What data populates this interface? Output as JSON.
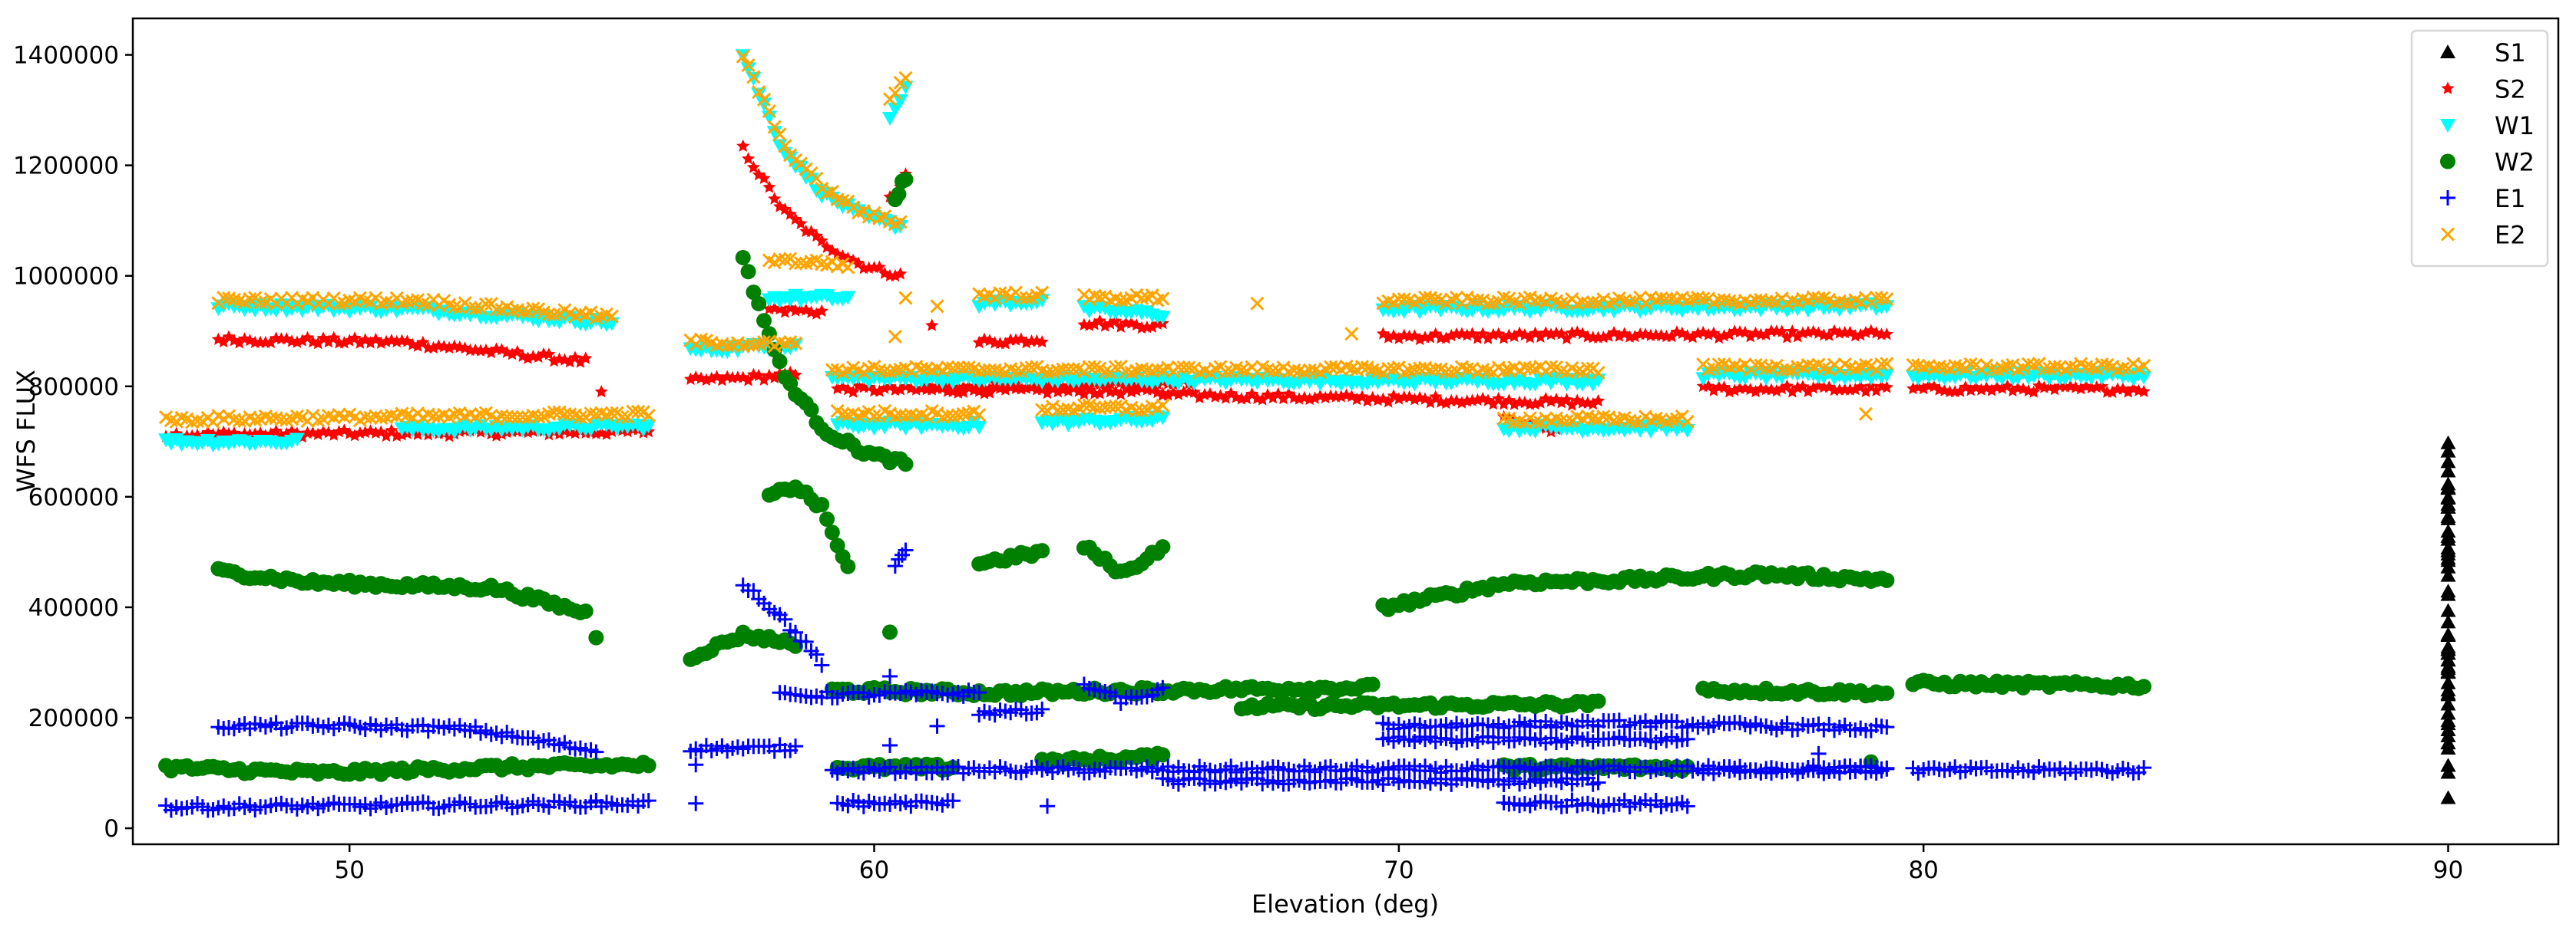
{
  "chart_data": {
    "type": "scatter",
    "title": "",
    "xlabel": "Elevation (deg)",
    "ylabel": "WFS FLUX",
    "xlim": [
      45.87,
      92.1
    ],
    "ylim": [
      -29000,
      1466000
    ],
    "xticks": [
      "50",
      "60",
      "70",
      "80",
      "90"
    ],
    "yticks": [
      "0",
      "200000",
      "400000",
      "600000",
      "800000",
      "1000000",
      "1200000",
      "1400000"
    ],
    "grid": false,
    "legend_position": "top-right",
    "series": [
      {
        "name": "S1",
        "color": "#000000",
        "marker": "triangle-up",
        "segments": [
          [
            90,
            90,
            [
              40000,
              700000
            ]
          ]
        ],
        "points": []
      },
      {
        "name": "S2",
        "color": "#ff0000",
        "marker": "star",
        "segments": [
          [
            46.5,
            55.7,
            [
              712000,
              718000
            ]
          ],
          [
            47.5,
            54.5,
            [
              885000,
              880000,
              845000
            ]
          ],
          [
            56.5,
            58.5,
            [
              810000,
              820000
            ]
          ],
          [
            57.5,
            60.5,
            [
              1230000,
              1120000,
              1060000,
              1020000,
              1000000
            ]
          ],
          [
            58,
            59,
            [
              940000,
              935000
            ]
          ],
          [
            59.3,
            65.5,
            [
              795000,
              790000
            ]
          ],
          [
            60.3,
            60.6,
            [
              1140000,
              1180000
            ]
          ],
          [
            62,
            63.2,
            [
              880000,
              885000
            ]
          ],
          [
            64,
            65.5,
            [
              915000,
              910000
            ]
          ],
          [
            61,
            66,
            [
              800000,
              805000
            ]
          ],
          [
            65.5,
            73.8,
            [
              785000,
              770000
            ]
          ],
          [
            69.7,
            79.3,
            [
              890000,
              895000
            ]
          ],
          [
            72,
            73,
            [
              740000,
              720000
            ]
          ],
          [
            75.8,
            79.3,
            [
              795000,
              795000
            ]
          ],
          [
            79.8,
            84.2,
            [
              795000,
              795000
            ]
          ]
        ],
        "points": [
          [
            54.8,
            790000
          ],
          [
            61.1,
            910000
          ]
        ]
      },
      {
        "name": "W1",
        "color": "#00ffff",
        "marker": "triangle-down",
        "segments": [
          [
            46.5,
            49,
            [
              700000,
              700000
            ]
          ],
          [
            47.5,
            55,
            [
              945000,
              940000,
              915000
            ]
          ],
          [
            51,
            55.7,
            [
              722000,
              728000
            ]
          ],
          [
            56.5,
            58.5,
            [
              865000,
              875000
            ]
          ],
          [
            57.5,
            60.5,
            [
              1400000,
              1230000,
              1150000,
              1110000,
              1090000
            ]
          ],
          [
            58,
            59.5,
            [
              960000,
              960000
            ]
          ],
          [
            59.3,
            62,
            [
              730000,
              730000
            ]
          ],
          [
            59.2,
            69.5,
            [
              815000,
              810000
            ]
          ],
          [
            60.3,
            60.6,
            [
              1280000,
              1340000
            ]
          ],
          [
            62,
            63.2,
            [
              950000,
              955000
            ]
          ],
          [
            64,
            65.5,
            [
              940000,
              930000
            ]
          ],
          [
            63.2,
            65.5,
            [
              735000,
              740000
            ]
          ],
          [
            69.7,
            79.3,
            [
              940000,
              945000
            ]
          ],
          [
            69.5,
            73.8,
            [
              810000,
              810000
            ]
          ],
          [
            72,
            75.5,
            [
              725000,
              725000
            ]
          ],
          [
            75.8,
            79.3,
            [
              820000,
              820000
            ]
          ],
          [
            79.8,
            84.2,
            [
              820000,
              820000
            ]
          ]
        ],
        "points": []
      },
      {
        "name": "W2",
        "color": "#008000",
        "marker": "circle",
        "segments": [
          [
            46.5,
            55.7,
            [
              110000,
              100000,
              110000,
              115000
            ]
          ],
          [
            47.5,
            54.5,
            [
              465000,
              445000,
              440000,
              435000,
              390000
            ]
          ],
          [
            56.5,
            58.5,
            [
              310000,
              350000,
              335000
            ]
          ],
          [
            57.5,
            60.6,
            [
              1030000,
              820000,
              720000,
              680000,
              660000
            ]
          ],
          [
            58,
            59.5,
            [
              600000,
              620000,
              580000,
              470000
            ]
          ],
          [
            59.2,
            65.5,
            [
              250000,
              245000,
              250000
            ]
          ],
          [
            60.4,
            60.6,
            [
              1140000,
              1180000
            ]
          ],
          [
            59.3,
            61.5,
            [
              110000,
              110000
            ]
          ],
          [
            62,
            63.2,
            [
              480000,
              500000
            ]
          ],
          [
            64,
            65.5,
            [
              510000,
              460000,
              510000
            ]
          ],
          [
            63.2,
            65.5,
            [
              120000,
              130000
            ]
          ],
          [
            65.5,
            69.5,
            [
              250000,
              255000
            ]
          ],
          [
            67,
            73.8,
            [
              220000,
              225000
            ]
          ],
          [
            69.7,
            79.3,
            [
              400000,
              445000,
              450000,
              460000,
              450000
            ]
          ],
          [
            72,
            75.5,
            [
              110000,
              110000
            ]
          ],
          [
            75.8,
            79.3,
            [
              250000,
              245000
            ]
          ],
          [
            79.8,
            84.2,
            [
              262000,
              258000
            ]
          ]
        ],
        "points": [
          [
            54.7,
            345000
          ],
          [
            60.3,
            355000
          ],
          [
            79,
            120000
          ]
        ]
      },
      {
        "name": "E1",
        "color": "#0000ff",
        "marker": "plus",
        "segments": [
          [
            46.5,
            55.7,
            [
              38000,
              45000
            ]
          ],
          [
            47.5,
            54.7,
            [
              185000,
              185000,
              180000,
              140000
            ]
          ],
          [
            56.5,
            58.5,
            [
              145000,
              145000
            ]
          ],
          [
            57.5,
            59,
            [
              445000,
              380000,
              300000
            ]
          ],
          [
            58.2,
            62,
            [
              240000,
              245000
            ]
          ],
          [
            59.2,
            79.3,
            [
              105000,
              108000
            ]
          ],
          [
            59.3,
            61.5,
            [
              45000,
              45000
            ]
          ],
          [
            60.4,
            60.6,
            [
              480000,
              505000
            ]
          ],
          [
            62,
            63.2,
            [
              210000,
              210000
            ]
          ],
          [
            64,
            65.5,
            [
              260000,
              230000,
              250000
            ]
          ],
          [
            65.5,
            73.8,
            [
              85000,
              85000
            ]
          ],
          [
            69.7,
            79.3,
            [
              185000,
              190000,
              180000
            ]
          ],
          [
            69.7,
            75.5,
            [
              160000,
              160000
            ]
          ],
          [
            72,
            75.5,
            [
              45000,
              45000
            ]
          ],
          [
            75.8,
            79.3,
            [
              105000,
              105000
            ]
          ],
          [
            79.8,
            84.2,
            [
              105000,
              105000
            ]
          ]
        ],
        "points": [
          [
            56.6,
            45000
          ],
          [
            56.6,
            115000
          ],
          [
            60.3,
            275000
          ],
          [
            60.3,
            150000
          ],
          [
            61.2,
            185000
          ],
          [
            63.3,
            40000
          ],
          [
            78,
            135000
          ]
        ]
      },
      {
        "name": "E2",
        "color": "#ffa500",
        "marker": "x",
        "segments": [
          [
            46.5,
            55.7,
            [
              740000,
              750000
            ]
          ],
          [
            47.5,
            55,
            [
              955000,
              955000,
              925000
            ]
          ],
          [
            56.5,
            58.5,
            [
              880000,
              875000
            ]
          ],
          [
            57.5,
            60.5,
            [
              1400000,
              1240000,
              1160000,
              1115000,
              1095000
            ]
          ],
          [
            58,
            59.5,
            [
              1030000,
              1020000
            ]
          ],
          [
            59.3,
            62,
            [
              750000,
              750000
            ]
          ],
          [
            59.2,
            73.8,
            [
              830000,
              830000
            ]
          ],
          [
            60.3,
            60.6,
            [
              1320000,
              1360000
            ]
          ],
          [
            62,
            63.2,
            [
              965000,
              965000
            ]
          ],
          [
            64,
            65.5,
            [
              960000,
              960000
            ]
          ],
          [
            63.2,
            65.5,
            [
              760000,
              760000
            ]
          ],
          [
            69.7,
            79.3,
            [
              955000,
              955000
            ]
          ],
          [
            72,
            75.5,
            [
              740000,
              740000
            ]
          ],
          [
            75.8,
            79.3,
            [
              835000,
              835000
            ]
          ],
          [
            79.8,
            84.2,
            [
              835000,
              835000
            ]
          ]
        ],
        "points": [
          [
            60.4,
            890000
          ],
          [
            60.6,
            960000
          ],
          [
            61.2,
            945000
          ],
          [
            67.3,
            950000
          ],
          [
            69.1,
            895000
          ],
          [
            72.1,
            830000
          ],
          [
            78.9,
            750000
          ]
        ]
      }
    ]
  }
}
